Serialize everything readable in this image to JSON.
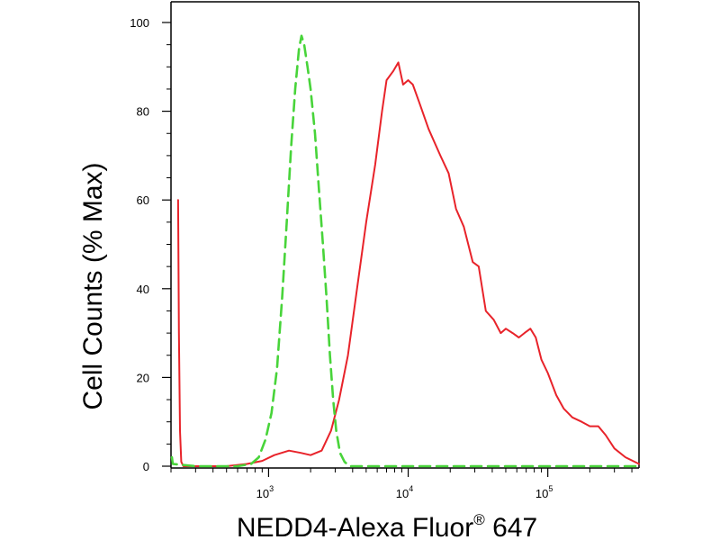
{
  "chart_data": {
    "type": "line",
    "xlabel": "NEDD4-Alexa Fluor",
    "xlabel_superscript": "®",
    "xlabel_suffix": " 647",
    "ylabel": "Cell Counts (% Max)",
    "x_scale": "log",
    "xlim": [
      200,
      450000
    ],
    "ylim": [
      0,
      100
    ],
    "y_ticks": [
      0,
      20,
      40,
      60,
      80,
      100
    ],
    "x_ticks": [
      {
        "value": 1000,
        "base": "10",
        "exp": "3"
      },
      {
        "value": 10000,
        "base": "10",
        "exp": "4"
      },
      {
        "value": 100000,
        "base": "10",
        "exp": "5"
      }
    ],
    "grid": false,
    "legend": "none",
    "colors": {
      "red_series": "#e8232a",
      "green_series": "#48d43a"
    },
    "series": [
      {
        "style": "solid",
        "color": "#e8232a",
        "points": [
          [
            225,
            60
          ],
          [
            228,
            30
          ],
          [
            232,
            8
          ],
          [
            237,
            1
          ],
          [
            245,
            0
          ],
          [
            500,
            0
          ],
          [
            700,
            0.5
          ],
          [
            900,
            1.2
          ],
          [
            1100,
            2.5
          ],
          [
            1400,
            3.5
          ],
          [
            1700,
            3
          ],
          [
            2000,
            2.5
          ],
          [
            2400,
            3.5
          ],
          [
            2800,
            8
          ],
          [
            3200,
            15
          ],
          [
            3700,
            25
          ],
          [
            4300,
            40
          ],
          [
            5000,
            55
          ],
          [
            5800,
            68
          ],
          [
            6500,
            80
          ],
          [
            7000,
            87
          ],
          [
            7800,
            89
          ],
          [
            8500,
            91
          ],
          [
            9200,
            86
          ],
          [
            10000,
            87
          ],
          [
            10800,
            86
          ],
          [
            12000,
            82
          ],
          [
            14000,
            76
          ],
          [
            17000,
            70
          ],
          [
            19500,
            66
          ],
          [
            22000,
            58
          ],
          [
            25000,
            54
          ],
          [
            29000,
            46
          ],
          [
            32000,
            45
          ],
          [
            36000,
            35
          ],
          [
            41000,
            33
          ],
          [
            46000,
            30
          ],
          [
            50000,
            31
          ],
          [
            56000,
            30
          ],
          [
            62000,
            29
          ],
          [
            68000,
            30
          ],
          [
            75000,
            31
          ],
          [
            82000,
            29
          ],
          [
            90000,
            24
          ],
          [
            100000,
            21
          ],
          [
            115000,
            16
          ],
          [
            130000,
            13
          ],
          [
            150000,
            11
          ],
          [
            175000,
            10
          ],
          [
            200000,
            9
          ],
          [
            230000,
            9
          ],
          [
            260000,
            7
          ],
          [
            300000,
            4
          ],
          [
            360000,
            2
          ],
          [
            450000,
            0.5
          ]
        ]
      },
      {
        "style": "dashed",
        "color": "#48d43a",
        "points": [
          [
            203,
            2
          ],
          [
            206,
            0.5
          ],
          [
            300,
            0
          ],
          [
            600,
            0
          ],
          [
            750,
            0.5
          ],
          [
            850,
            2
          ],
          [
            950,
            6
          ],
          [
            1050,
            12
          ],
          [
            1150,
            22
          ],
          [
            1250,
            38
          ],
          [
            1350,
            55
          ],
          [
            1450,
            72
          ],
          [
            1550,
            85
          ],
          [
            1650,
            94
          ],
          [
            1720,
            97
          ],
          [
            1800,
            95
          ],
          [
            1900,
            90
          ],
          [
            2000,
            85
          ],
          [
            2150,
            75
          ],
          [
            2300,
            62
          ],
          [
            2450,
            50
          ],
          [
            2600,
            38
          ],
          [
            2750,
            25
          ],
          [
            2900,
            15
          ],
          [
            3050,
            8
          ],
          [
            3250,
            3
          ],
          [
            3500,
            1
          ],
          [
            3800,
            0
          ],
          [
            450000,
            0
          ]
        ]
      }
    ]
  }
}
